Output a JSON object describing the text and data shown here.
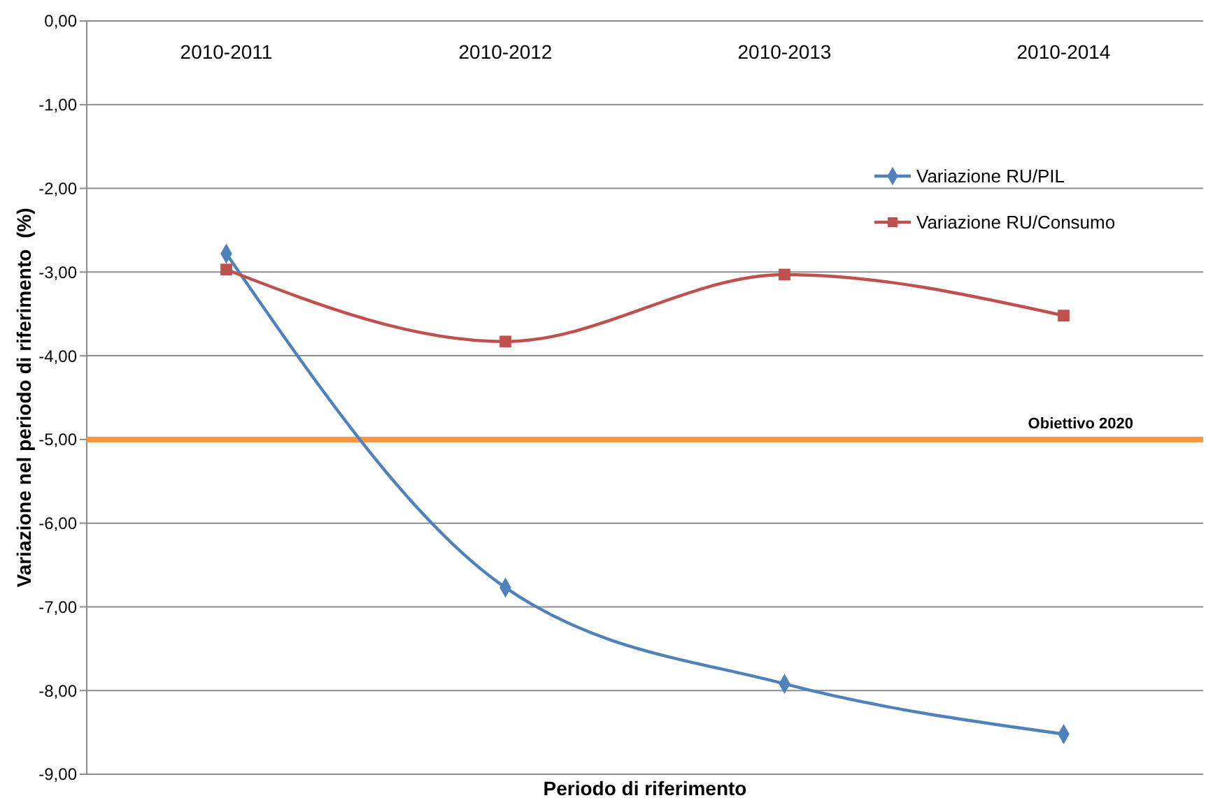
{
  "chart_data": {
    "type": "line",
    "xlabel": "Periodo di riferimento",
    "ylabel": "Variazione nel periodo di riferimento  (%)",
    "categories": [
      "2010-2011",
      "2010-2012",
      "2010-2013",
      "2010-2014"
    ],
    "series": [
      {
        "name": "Variazione RU/PIL",
        "color": "#4f81bd",
        "marker": "diamond",
        "values": [
          -2.78,
          -6.77,
          -7.92,
          -8.52
        ]
      },
      {
        "name": "Variazione RU/Consumo",
        "color": "#c0504d",
        "marker": "square",
        "values": [
          -2.97,
          -3.83,
          -3.03,
          -3.52
        ]
      }
    ],
    "ylim": [
      -9,
      0
    ],
    "yticks": [
      {
        "value": 0,
        "label": "0,00"
      },
      {
        "value": -1,
        "label": "-1,00"
      },
      {
        "value": -2,
        "label": "-2,00"
      },
      {
        "value": -3,
        "label": "-3,00"
      },
      {
        "value": -4,
        "label": "-4,00"
      },
      {
        "value": -5,
        "label": "-5,00"
      },
      {
        "value": -6,
        "label": "-6,00"
      },
      {
        "value": -7,
        "label": "-7,00"
      },
      {
        "value": -8,
        "label": "-8,00"
      },
      {
        "value": -9,
        "label": "-9,00"
      }
    ],
    "ref_lines": [
      {
        "axis": "y",
        "value": -5,
        "label": "Obiettivo 2020",
        "color": "#f79646"
      }
    ],
    "grid": "y",
    "legend": "top right"
  }
}
